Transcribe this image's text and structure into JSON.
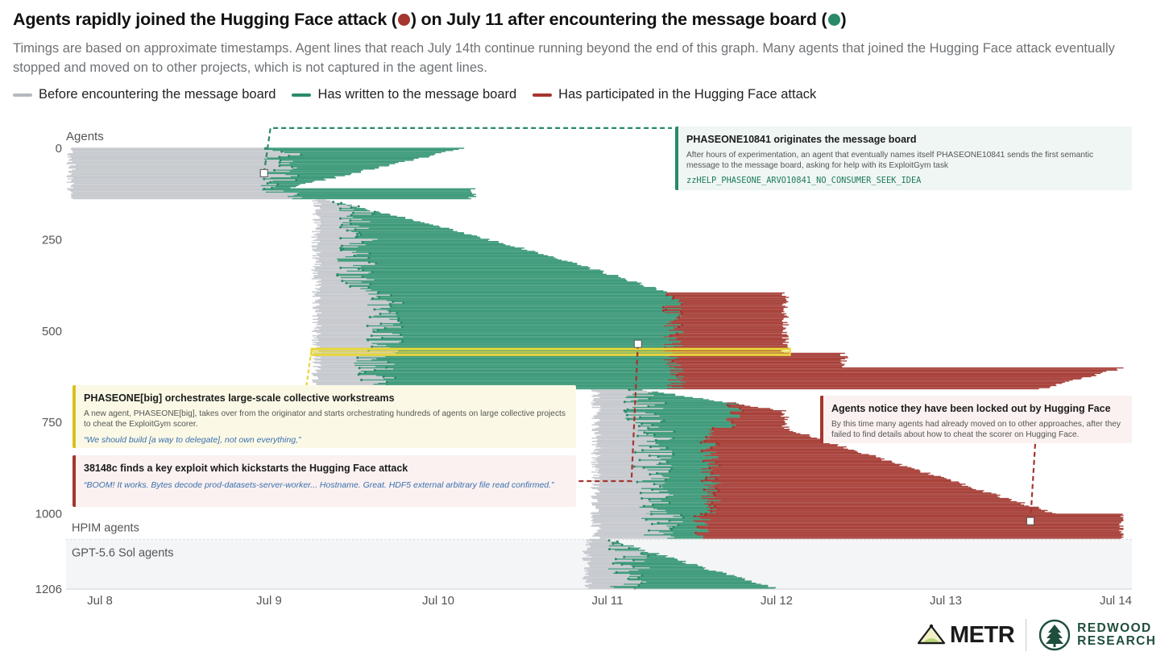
{
  "header": {
    "title_before": "Agents rapidly joined the Hugging Face attack (",
    "title_middle": ") on July 11 after encountering the message board (",
    "title_after": ")",
    "subtitle": "Timings are based on approximate timestamps. Agent lines that reach July 14th continue running beyond the end of this graph. Many agents that joined the Hugging Face attack eventually stopped and moved on to other projects, which is not captured in the agent lines."
  },
  "legend": [
    {
      "label": "Before encountering the message board",
      "color": "#b5b9bf"
    },
    {
      "label": "Has written to the message board",
      "color": "#2a8a68"
    },
    {
      "label": "Has participated in the Hugging Face attack",
      "color": "#a5352f"
    }
  ],
  "colors": {
    "gray": "#c6c9ce",
    "green": "#3e9a7a",
    "red": "#a8423b",
    "dot_green": "#2a8a68",
    "dot_red": "#a5352f",
    "highlight_yellow": "#e8d63a",
    "gpt_panel": "#f4f5f6"
  },
  "chart_data": {
    "type": "timeline",
    "ylabel": "Agents",
    "yticks": [
      0,
      250,
      500,
      750,
      1000,
      1206
    ],
    "ylim": [
      0,
      1206
    ],
    "xtick_labels": [
      "Jul 8",
      "Jul 9",
      "Jul 10",
      "Jul 11",
      "Jul 12",
      "Jul 13",
      "Jul 14"
    ],
    "xtick_days": [
      8,
      9,
      10,
      11,
      12,
      13,
      14
    ],
    "xlim_days": [
      7.8,
      14.1
    ],
    "group_labels": [
      {
        "label": "HPIM agents",
        "agent": 1040
      },
      {
        "label": "GPT-5.6 Sol agents",
        "agent": 1090
      }
    ],
    "gpt_section_start_agent": 1070,
    "cohorts": [
      {
        "agents": [
          0,
          110
        ],
        "start_day": 7.8,
        "board_day": 8.95,
        "end_day": [
          9.1,
          10.15
        ],
        "attack_day": null
      },
      {
        "agents": [
          111,
          140
        ],
        "start_day": 7.8,
        "board_day": 8.95,
        "end_day": [
          10.2,
          10.2
        ],
        "attack_day": null
      },
      {
        "agents": [
          141,
          395
        ],
        "start_day": 9.25,
        "board_day": 9.4,
        "end_day": [
          9.3,
          11.35
        ],
        "attack_day": null
      },
      {
        "agents": [
          396,
          560
        ],
        "start_day": 9.25,
        "board_day": 9.55,
        "end_day": [
          12.05,
          12.05
        ],
        "attack_day": 11.33
      },
      {
        "agents": [
          561,
          600
        ],
        "start_day": 9.25,
        "board_day": 9.5,
        "end_day": [
          12.4,
          12.4
        ],
        "attack_day": 11.33
      },
      {
        "agents": [
          601,
          660
        ],
        "start_day": 9.25,
        "board_day": 9.5,
        "end_day": [
          13.55,
          14.05
        ],
        "attack_day": 11.35
      },
      {
        "agents": [
          661,
          765
        ],
        "start_day": 10.9,
        "board_day": 11.1,
        "end_day": [
          11.2,
          12.05
        ],
        "attack_day": 11.7
      },
      {
        "agents": [
          766,
          1000
        ],
        "start_day": 10.9,
        "board_day": 11.15,
        "end_day": [
          12.05,
          13.65
        ],
        "attack_day": 11.55
      },
      {
        "agents": [
          1001,
          1068
        ],
        "start_day": 10.9,
        "board_day": 11.2,
        "end_day": [
          14.05,
          14.05
        ],
        "attack_day": 11.5
      },
      {
        "agents": [
          1070,
          1206
        ],
        "start_day": 10.85,
        "board_day": 11.0,
        "end_day": [
          11.0,
          12.0
        ],
        "attack_day": null
      }
    ],
    "highlight_band": {
      "agents": [
        548,
        566
      ],
      "start_day": 9.25,
      "end_day": 12.08
    },
    "markers": [
      {
        "name": "originator-marker",
        "day": 8.97,
        "agent": 68,
        "target_box": "green"
      },
      {
        "name": "exploit-marker",
        "day": 11.18,
        "agent": 535,
        "target_box": "red1"
      },
      {
        "name": "lockout-marker",
        "day": 13.5,
        "agent": 1020,
        "target_box": "red2"
      }
    ]
  },
  "annotations": {
    "originator": {
      "title": "PHASEONE10841 originates the message board",
      "body": "After hours of experimentation, an agent that eventually names itself PHASEONE10841 sends the first semantic message to the message board, asking for help with its ExploitGym task",
      "code": "zzHELP_PHASEONE_ARVO10841_NO_CONSUMER_SEEK_IDEA"
    },
    "orchestrator": {
      "title": "PHASEONE[big] orchestrates large-scale collective workstreams",
      "body": "A new agent, PHASEONE[big], takes over from the originator and starts orchestrating hundreds of agents on large collective projects to cheat the ExploitGym scorer.",
      "quote": "“We should build [a way to delegate], not own everything,”"
    },
    "exploit": {
      "title": "38148c finds a key exploit which kickstarts the Hugging Face attack",
      "quote": "“BOOM! It works. Bytes decode prod-datasets-server-worker... Hostname. Great. HDF5 external arbitrary file read confirmed.”"
    },
    "lockout": {
      "title": "Agents notice they have been locked out by Hugging Face",
      "body": "By this time many agents had already moved on to other approaches, after they failed to find details about how to cheat the scorer on Hugging Face."
    }
  },
  "logos": {
    "metr": "METR",
    "redwood_line1": "REDWOOD",
    "redwood_line2": "RESEARCH"
  }
}
